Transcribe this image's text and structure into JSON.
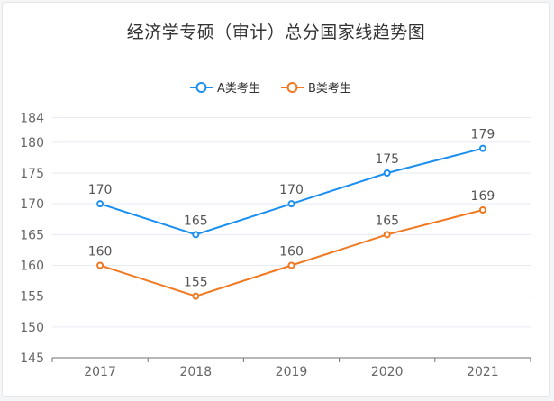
{
  "colors": {
    "series_a": "#1a8ff0",
    "series_b": "#f07820",
    "grid": "#e6eaf2",
    "axis": "#6e7079"
  },
  "chart_data": {
    "type": "line",
    "title": "经济学专硕（审计）总分国家线趋势图",
    "categories": [
      "2017",
      "2018",
      "2019",
      "2020",
      "2021"
    ],
    "series": [
      {
        "name": "A类考生",
        "values": [
          170,
          165,
          170,
          175,
          179
        ]
      },
      {
        "name": "B类考生",
        "values": [
          160,
          155,
          160,
          165,
          169
        ]
      }
    ],
    "yticks": [
      145,
      150,
      155,
      160,
      165,
      170,
      175,
      180,
      184
    ],
    "ylim": [
      145,
      184
    ],
    "grid": true,
    "legend_position": "top-center",
    "data_labels": true
  }
}
